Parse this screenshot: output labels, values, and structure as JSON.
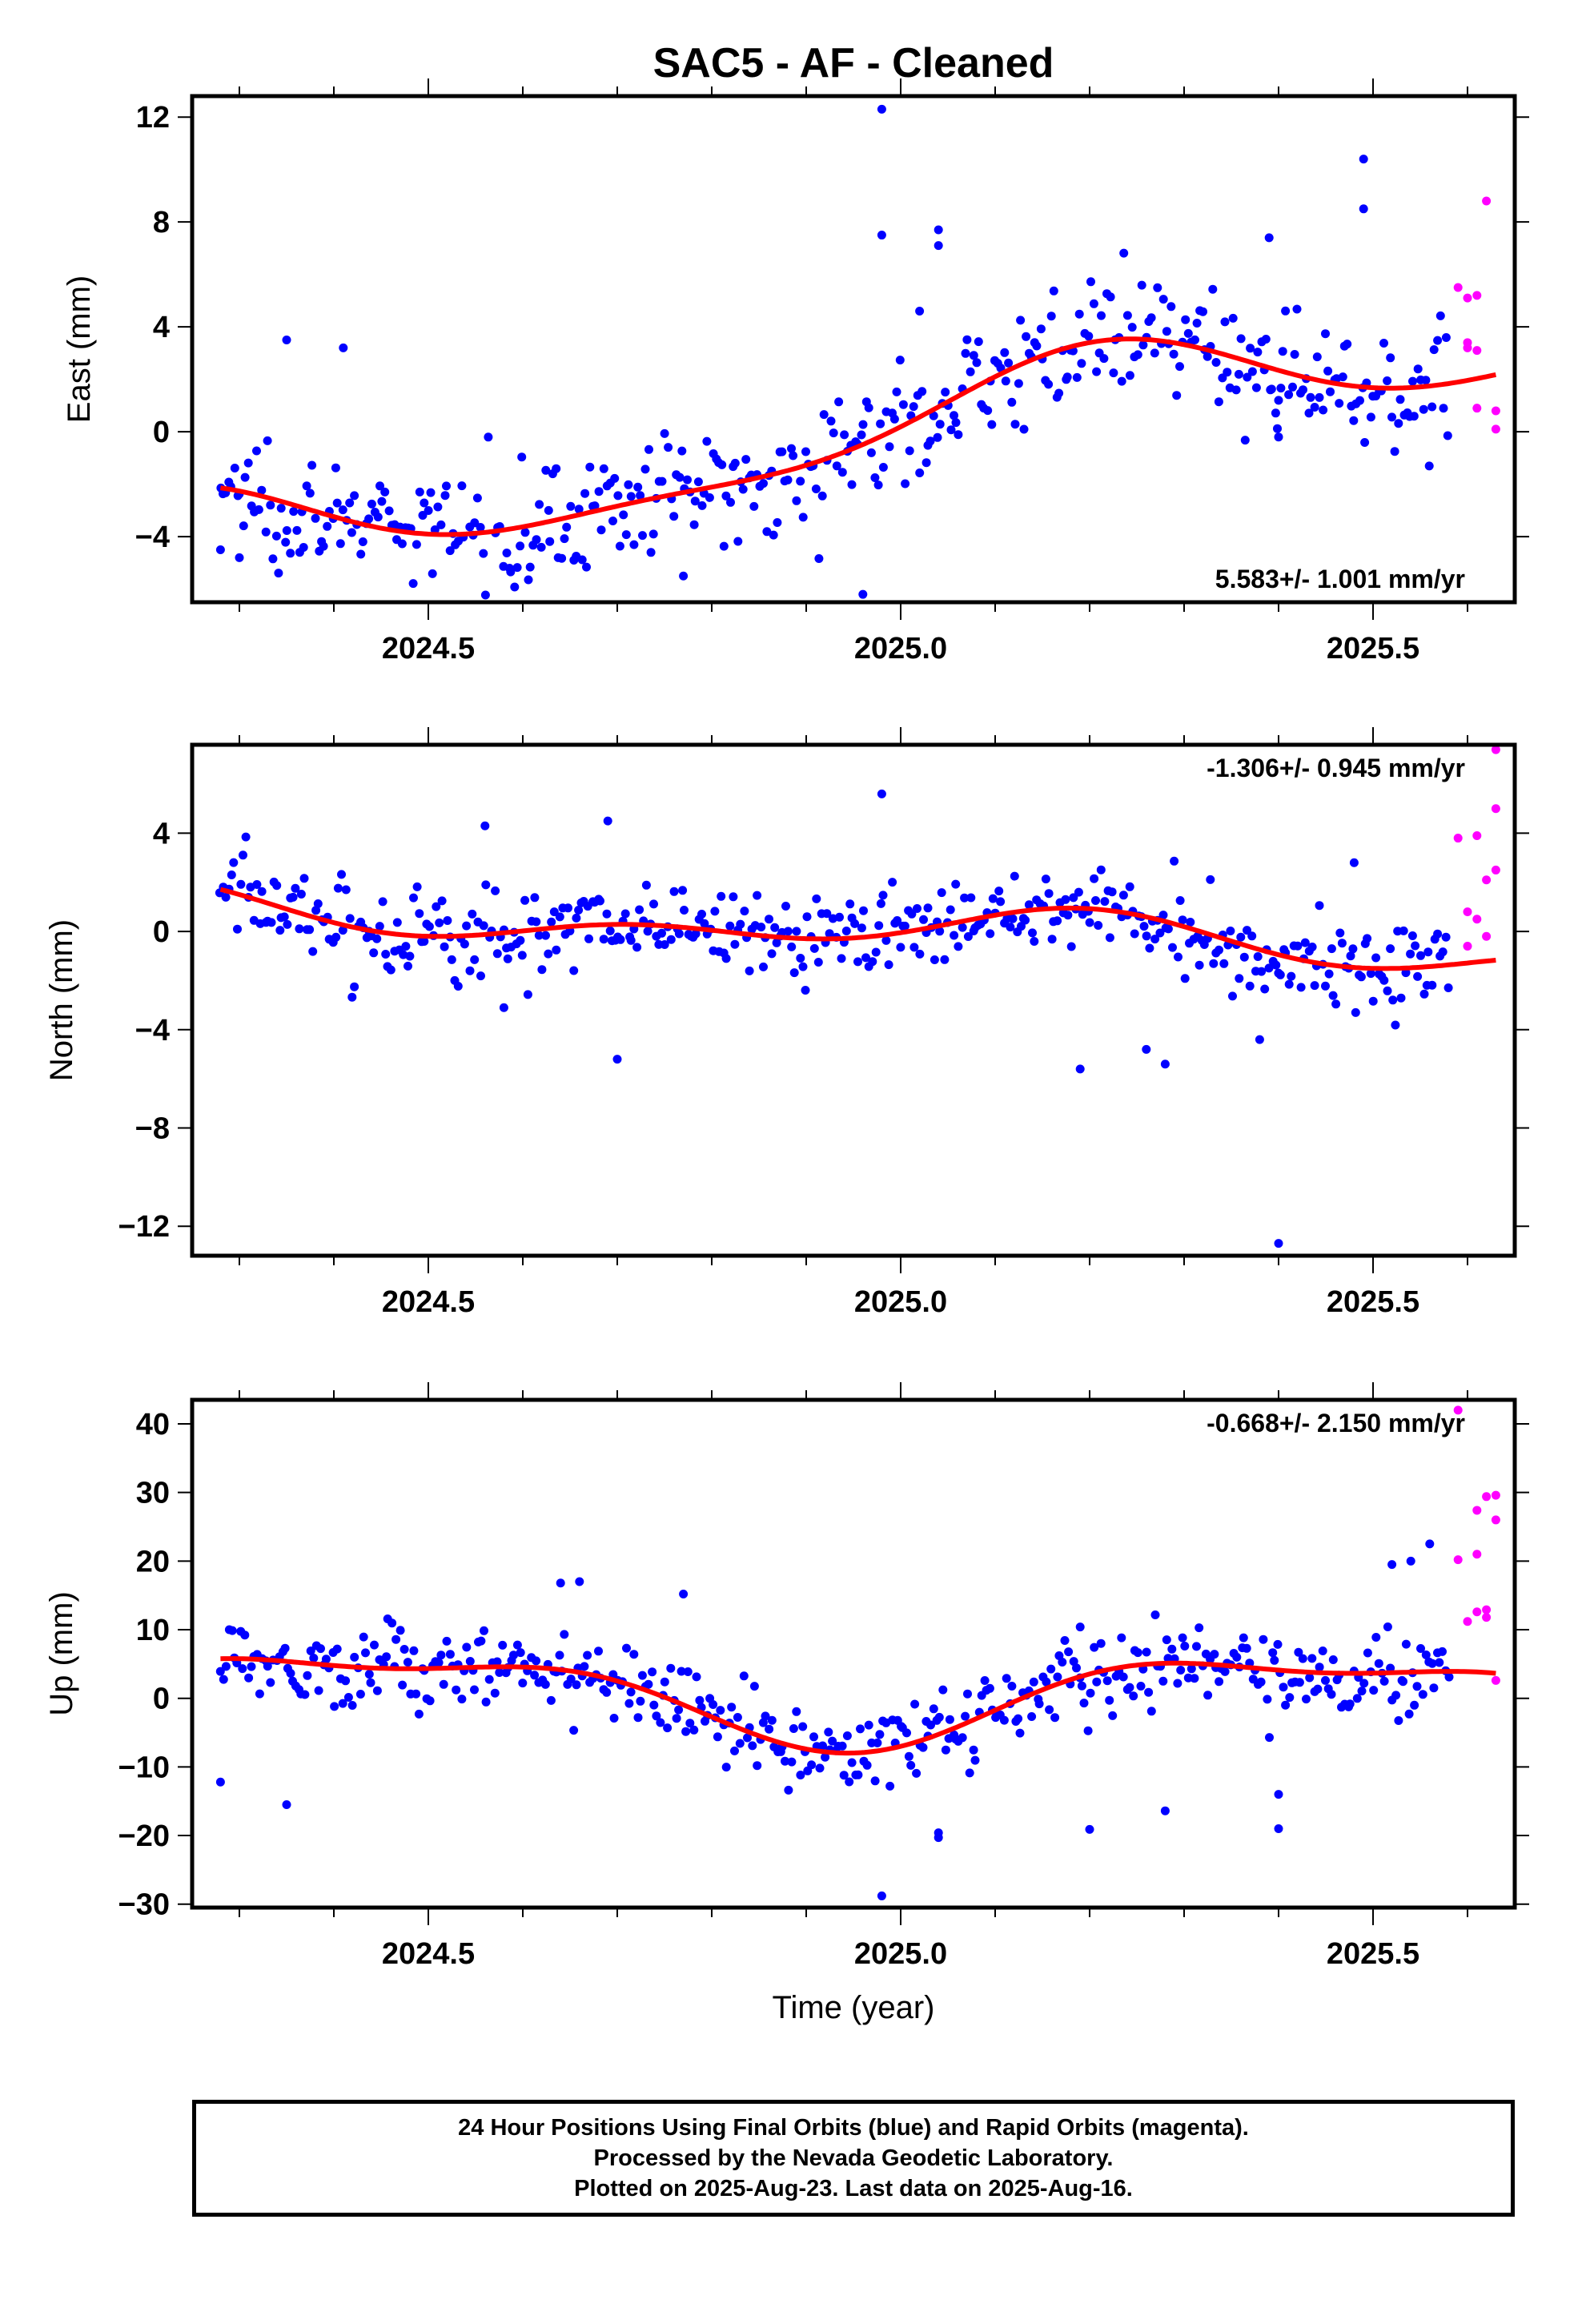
{
  "title": "SAC5  - AF - Cleaned",
  "colors": {
    "final_orbits": "#0000ff",
    "rapid_orbits": "#ff00ff",
    "model_fit": "#ff0000",
    "frame": "#000000"
  },
  "chart_data": [
    {
      "type": "scatter",
      "panel": "east",
      "ylabel": "East (mm)",
      "xlabel": "",
      "xlim": [
        2024.25,
        2025.65
      ],
      "ylim": [
        -6.5,
        12.8
      ],
      "xticks": [
        2024.5,
        2025.0,
        2025.5
      ],
      "xtick_labels": [
        "2024.5",
        "2025.0",
        "2025.5"
      ],
      "yticks": [
        -4,
        0,
        4,
        8,
        12
      ],
      "ytick_labels": [
        "−4",
        "0",
        "4",
        "8",
        "12"
      ],
      "rate_label": "5.583+/- 1.001 mm/yr",
      "rate_position": "bottom-right",
      "grid": false,
      "fit": {
        "rate": 5.583,
        "offset": 0.04,
        "amp_sin": 1.6,
        "amp_cos": 0.65,
        "amp_sin2": 0.2,
        "amp_cos2": -0.5,
        "x0": 2025.0
      },
      "residual_sigma": 1.1,
      "final_x_range": [
        2024.28,
        2025.58
      ],
      "final_count": 440,
      "outliers": [
        {
          "x": 2024.98,
          "y": 12.3
        },
        {
          "x": 2024.98,
          "y": 7.5
        },
        {
          "x": 2025.04,
          "y": 7.7
        },
        {
          "x": 2025.04,
          "y": 7.1
        },
        {
          "x": 2025.02,
          "y": 4.6
        },
        {
          "x": 2024.96,
          "y": -6.2
        },
        {
          "x": 2025.49,
          "y": 10.4
        },
        {
          "x": 2025.49,
          "y": 8.5
        },
        {
          "x": 2025.39,
          "y": 7.4
        },
        {
          "x": 2025.4,
          "y": -0.2
        },
        {
          "x": 2025.4,
          "y": 1.2
        },
        {
          "x": 2024.35,
          "y": 3.5
        },
        {
          "x": 2024.41,
          "y": 3.2
        },
        {
          "x": 2024.28,
          "y": -4.5
        },
        {
          "x": 2024.3,
          "y": -4.8
        },
        {
          "x": 2024.77,
          "y": -5.5
        }
      ],
      "rapid_points": [
        {
          "x": 2025.59,
          "y": 5.5
        },
        {
          "x": 2025.6,
          "y": 5.1
        },
        {
          "x": 2025.61,
          "y": 5.2
        },
        {
          "x": 2025.6,
          "y": 3.2
        },
        {
          "x": 2025.61,
          "y": 3.1
        },
        {
          "x": 2025.6,
          "y": 3.4
        },
        {
          "x": 2025.62,
          "y": 8.8
        },
        {
          "x": 2025.61,
          "y": 0.9
        },
        {
          "x": 2025.63,
          "y": 0.8
        },
        {
          "x": 2025.63,
          "y": 0.1
        }
      ]
    },
    {
      "type": "scatter",
      "panel": "north",
      "ylabel": "North (mm)",
      "xlabel": "",
      "xlim": [
        2024.25,
        2025.65
      ],
      "ylim": [
        -13.2,
        7.6
      ],
      "xticks": [
        2024.5,
        2025.0,
        2025.5
      ],
      "xtick_labels": [
        "2024.5",
        "2025.0",
        "2025.5"
      ],
      "yticks": [
        -12,
        -8,
        -4,
        0,
        4
      ],
      "ytick_labels": [
        "−12",
        "−8",
        "−4",
        "0",
        "4"
      ],
      "rate_label": "-1.306+/- 0.945 mm/yr",
      "rate_position": "top-right",
      "grid": false,
      "fit": {
        "rate": -1.306,
        "offset": 0.0,
        "amp_sin": 0.55,
        "amp_cos": 0.4,
        "amp_sin2": 0.3,
        "amp_cos2": -0.45,
        "x0": 2025.0
      },
      "residual_sigma": 0.95,
      "final_x_range": [
        2024.28,
        2025.58
      ],
      "final_count": 440,
      "outliers": [
        {
          "x": 2024.7,
          "y": -5.2
        },
        {
          "x": 2024.69,
          "y": 4.5
        },
        {
          "x": 2024.56,
          "y": 4.3
        },
        {
          "x": 2024.98,
          "y": 5.6
        },
        {
          "x": 2025.19,
          "y": -5.6
        },
        {
          "x": 2025.28,
          "y": -5.4
        },
        {
          "x": 2025.26,
          "y": -4.8
        },
        {
          "x": 2025.38,
          "y": -4.4
        },
        {
          "x": 2025.4,
          "y": -12.7
        },
        {
          "x": 2024.58,
          "y": -3.1
        },
        {
          "x": 2025.48,
          "y": 2.8
        }
      ],
      "rapid_points": [
        {
          "x": 2025.59,
          "y": 3.8
        },
        {
          "x": 2025.61,
          "y": 3.9
        },
        {
          "x": 2025.62,
          "y": 2.1
        },
        {
          "x": 2025.63,
          "y": 2.5
        },
        {
          "x": 2025.63,
          "y": 5.0
        },
        {
          "x": 2025.63,
          "y": 7.4
        },
        {
          "x": 2025.6,
          "y": 0.8
        },
        {
          "x": 2025.61,
          "y": 0.5
        },
        {
          "x": 2025.6,
          "y": -0.6
        },
        {
          "x": 2025.62,
          "y": -0.2
        }
      ]
    },
    {
      "type": "scatter",
      "panel": "up",
      "ylabel": "Up (mm)",
      "xlabel": "Time (year)",
      "xlim": [
        2024.25,
        2025.65
      ],
      "ylim": [
        -30.5,
        43.5
      ],
      "xticks": [
        2024.5,
        2025.0,
        2025.5
      ],
      "xtick_labels": [
        "2024.5",
        "2025.0",
        "2025.5"
      ],
      "yticks": [
        -30,
        -20,
        -10,
        0,
        10,
        20,
        30,
        40
      ],
      "ytick_labels": [
        "−30",
        "−20",
        "−10",
        "0",
        "10",
        "20",
        "30",
        "40"
      ],
      "rate_label": "-0.668+/- 2.150 mm/yr",
      "rate_position": "top-right",
      "grid": false,
      "fit": {
        "rate": -0.668,
        "offset": 0.5,
        "amp_sin": 2.5,
        "amp_cos": -5.5,
        "amp_sin2": 1.5,
        "amp_cos2": -2.0,
        "x0": 2025.0
      },
      "residual_sigma": 3.0,
      "final_x_range": [
        2024.28,
        2025.58
      ],
      "final_count": 440,
      "outliers": [
        {
          "x": 2024.98,
          "y": -28.8
        },
        {
          "x": 2025.04,
          "y": -20.3
        },
        {
          "x": 2025.04,
          "y": -19.6
        },
        {
          "x": 2025.2,
          "y": -19.1
        },
        {
          "x": 2025.28,
          "y": -16.4
        },
        {
          "x": 2025.4,
          "y": -19.0
        },
        {
          "x": 2025.4,
          "y": -14.0
        },
        {
          "x": 2024.35,
          "y": -15.5
        },
        {
          "x": 2024.28,
          "y": -12.2
        },
        {
          "x": 2025.19,
          "y": 10.4
        },
        {
          "x": 2025.56,
          "y": 22.5
        },
        {
          "x": 2025.54,
          "y": 20.0
        },
        {
          "x": 2025.52,
          "y": 19.5
        },
        {
          "x": 2024.66,
          "y": 17.0
        },
        {
          "x": 2024.64,
          "y": 16.8
        },
        {
          "x": 2024.77,
          "y": 15.2
        }
      ],
      "rapid_points": [
        {
          "x": 2025.59,
          "y": 42.0
        },
        {
          "x": 2025.61,
          "y": 27.4
        },
        {
          "x": 2025.62,
          "y": 29.4
        },
        {
          "x": 2025.63,
          "y": 29.6
        },
        {
          "x": 2025.63,
          "y": 26.0
        },
        {
          "x": 2025.59,
          "y": 20.2
        },
        {
          "x": 2025.61,
          "y": 21.0
        },
        {
          "x": 2025.6,
          "y": 11.2
        },
        {
          "x": 2025.61,
          "y": 12.6
        },
        {
          "x": 2025.62,
          "y": 12.9
        },
        {
          "x": 2025.62,
          "y": 11.8
        },
        {
          "x": 2025.63,
          "y": 2.6
        }
      ]
    }
  ],
  "footer": {
    "line1": "24 Hour Positions Using Final Orbits (blue) and Rapid Orbits (magenta).",
    "line2": "Processed by the Nevada Geodetic Laboratory.",
    "line3": "Plotted on 2025-Aug-23. Last data on 2025-Aug-16."
  }
}
